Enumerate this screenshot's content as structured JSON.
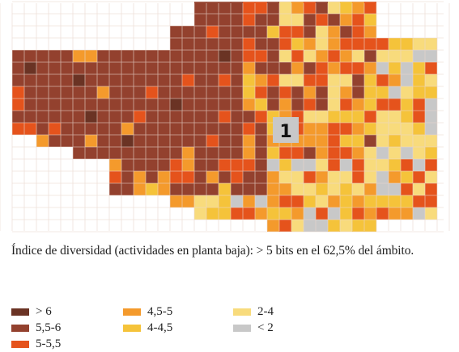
{
  "map": {
    "zone_label": "1",
    "colors": {
      "gt6": "#6a3324",
      "5_5_6": "#93412e",
      "5_5_5": "#e5531c",
      "4_5_5": "#f49a2c",
      "4_4_5": "#f5c33a",
      "2_4": "#f8db7c",
      "lt2": "#c8c8c8",
      "street": "#e9d6cc"
    }
  },
  "caption": {
    "text": "Índice de diversidad (actividades en planta baja): > 5 bits en el 62,5% del ámbito."
  },
  "legend": {
    "items": [
      {
        "label": "> 6",
        "color": "#6a3324"
      },
      {
        "label": "5,5-6",
        "color": "#93412e"
      },
      {
        "label": "5-5,5",
        "color": "#e5531c"
      },
      {
        "label": "4,5-5",
        "color": "#f49a2c"
      },
      {
        "label": "4-4,5",
        "color": "#f5c33a"
      },
      {
        "label": "2-4",
        "color": "#f8db7c"
      },
      {
        "label": "< 2",
        "color": "#c8c8c8"
      }
    ]
  }
}
